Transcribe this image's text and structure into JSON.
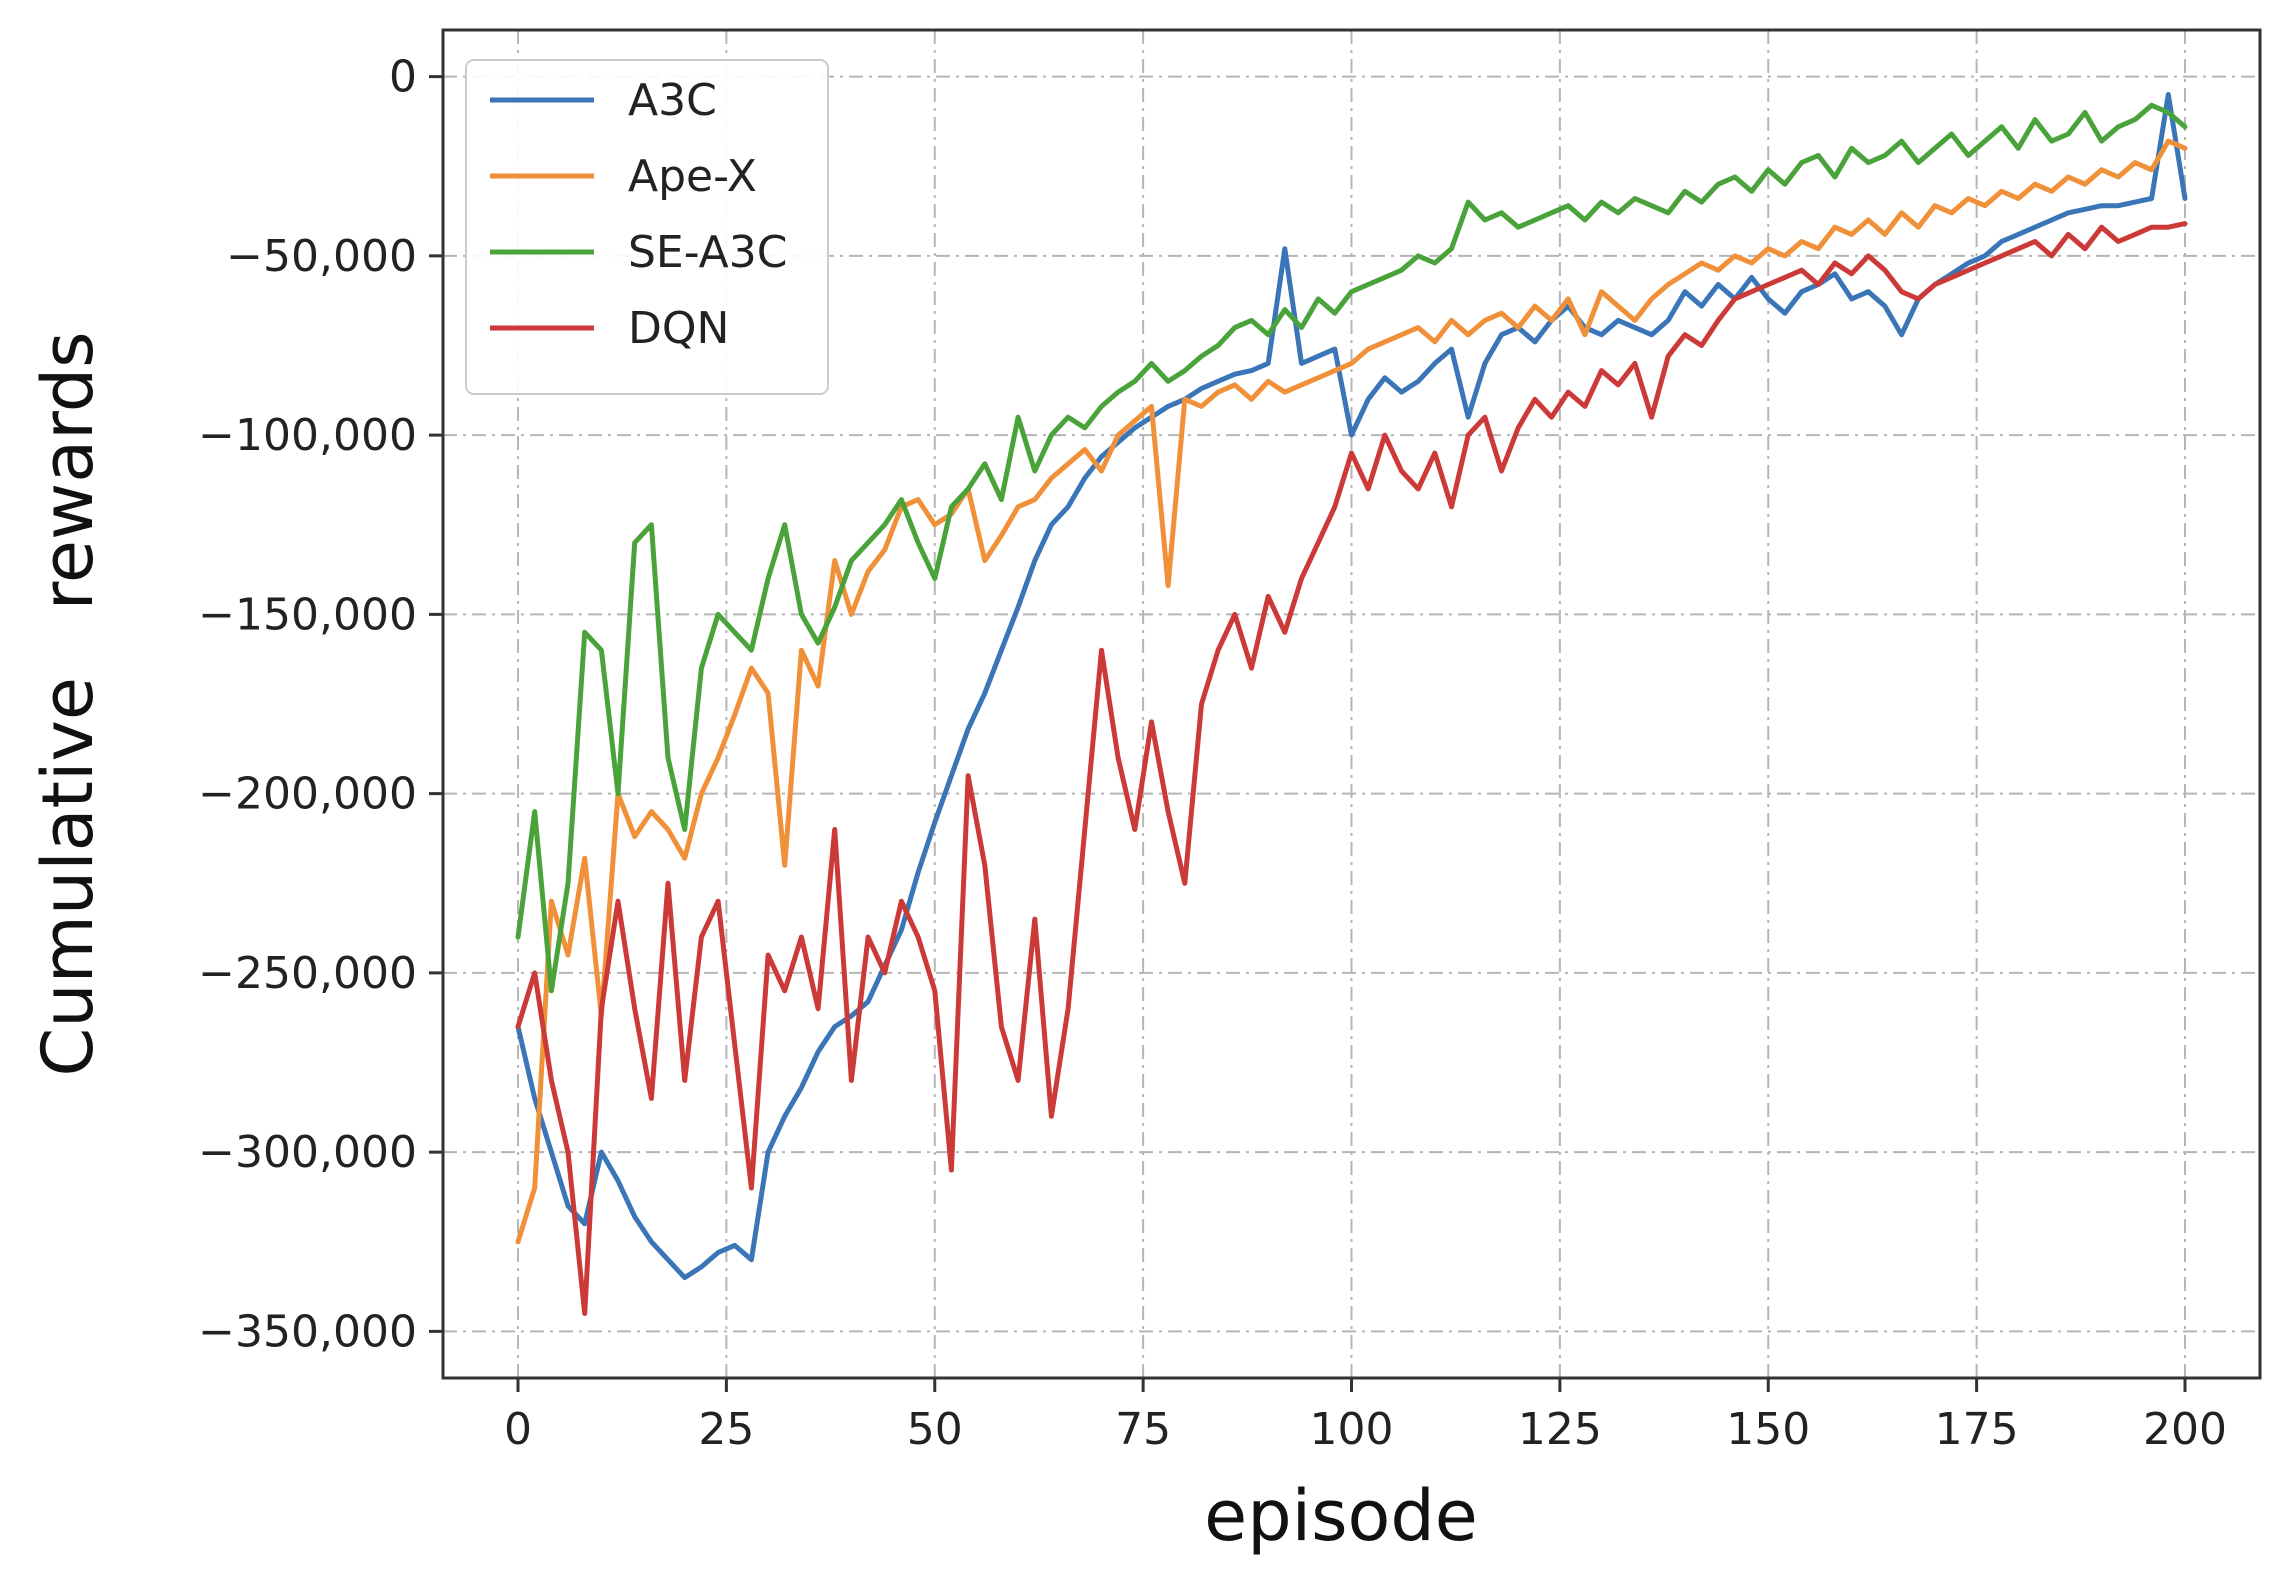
{
  "chart_data": {
    "type": "line",
    "title": "",
    "xlabel": "episode",
    "ylabel": "Cumulative   rewards",
    "xlim": [
      -9,
      209
    ],
    "ylim": [
      -363000,
      13000
    ],
    "xticks": [
      0,
      25,
      50,
      75,
      100,
      125,
      150,
      175,
      200
    ],
    "xtick_labels": [
      "0",
      "25",
      "50",
      "75",
      "100",
      "125",
      "150",
      "175",
      "200"
    ],
    "yticks": [
      0,
      -50000,
      -100000,
      -150000,
      -200000,
      -250000,
      -300000,
      -350000
    ],
    "ytick_labels": [
      "0",
      "−50,000",
      "−100,000",
      "−150,000",
      "−200,000",
      "−250,000",
      "−300,000",
      "−350,000"
    ],
    "grid": true,
    "legend_position": "top-left",
    "series": [
      {
        "name": "A3C",
        "color": "#3a75b8",
        "x": [
          0,
          2,
          4,
          6,
          8,
          10,
          12,
          14,
          16,
          18,
          20,
          22,
          24,
          26,
          28,
          30,
          32,
          34,
          36,
          38,
          40,
          42,
          44,
          46,
          48,
          50,
          52,
          54,
          56,
          58,
          60,
          62,
          64,
          66,
          68,
          70,
          72,
          74,
          76,
          78,
          80,
          82,
          84,
          86,
          88,
          90,
          92,
          94,
          96,
          98,
          100,
          102,
          104,
          106,
          108,
          110,
          112,
          114,
          116,
          118,
          120,
          122,
          124,
          126,
          128,
          130,
          132,
          134,
          136,
          138,
          140,
          142,
          144,
          146,
          148,
          150,
          152,
          154,
          156,
          158,
          160,
          162,
          164,
          166,
          168,
          170,
          172,
          174,
          176,
          178,
          180,
          182,
          184,
          186,
          188,
          190,
          192,
          194,
          196,
          198,
          200
        ],
        "y": [
          -265000,
          -285000,
          -300000,
          -315000,
          -320000,
          -300000,
          -308000,
          -318000,
          -325000,
          -330000,
          -335000,
          -332000,
          -328000,
          -326000,
          -330000,
          -300000,
          -290000,
          -282000,
          -272000,
          -265000,
          -262000,
          -258000,
          -248000,
          -238000,
          -222000,
          -208000,
          -195000,
          -182000,
          -172000,
          -160000,
          -148000,
          -135000,
          -125000,
          -120000,
          -112000,
          -106000,
          -102000,
          -98000,
          -95000,
          -92000,
          -90000,
          -87000,
          -85000,
          -83000,
          -82000,
          -80000,
          -48000,
          -80000,
          -78000,
          -76000,
          -100000,
          -90000,
          -84000,
          -88000,
          -85000,
          -80000,
          -76000,
          -95000,
          -80000,
          -72000,
          -70000,
          -74000,
          -68000,
          -64000,
          -70000,
          -72000,
          -68000,
          -70000,
          -72000,
          -68000,
          -60000,
          -64000,
          -58000,
          -62000,
          -56000,
          -62000,
          -66000,
          -60000,
          -58000,
          -55000,
          -62000,
          -60000,
          -64000,
          -72000,
          -62000,
          -58000,
          -55000,
          -52000,
          -50000,
          -46000,
          -44000,
          -42000,
          -40000,
          -38000,
          -37000,
          -36000,
          -36000,
          -35000,
          -34000,
          -5000,
          -34000
        ]
      },
      {
        "name": "Ape-X",
        "color": "#f0913a",
        "x": [
          0,
          2,
          4,
          6,
          8,
          10,
          12,
          14,
          16,
          18,
          20,
          22,
          24,
          26,
          28,
          30,
          32,
          34,
          36,
          38,
          40,
          42,
          44,
          46,
          48,
          50,
          52,
          54,
          56,
          58,
          60,
          62,
          64,
          66,
          68,
          70,
          72,
          74,
          76,
          78,
          80,
          82,
          84,
          86,
          88,
          90,
          92,
          94,
          96,
          98,
          100,
          102,
          104,
          106,
          108,
          110,
          112,
          114,
          116,
          118,
          120,
          122,
          124,
          126,
          128,
          130,
          132,
          134,
          136,
          138,
          140,
          142,
          144,
          146,
          148,
          150,
          152,
          154,
          156,
          158,
          160,
          162,
          164,
          166,
          168,
          170,
          172,
          174,
          176,
          178,
          180,
          182,
          184,
          186,
          188,
          190,
          192,
          194,
          196,
          198,
          200
        ],
        "y": [
          -325000,
          -310000,
          -230000,
          -245000,
          -218000,
          -262000,
          -200000,
          -212000,
          -205000,
          -210000,
          -218000,
          -200000,
          -190000,
          -178000,
          -165000,
          -172000,
          -220000,
          -160000,
          -170000,
          -135000,
          -150000,
          -138000,
          -132000,
          -120000,
          -118000,
          -125000,
          -122000,
          -115000,
          -135000,
          -128000,
          -120000,
          -118000,
          -112000,
          -108000,
          -104000,
          -110000,
          -100000,
          -96000,
          -92000,
          -142000,
          -90000,
          -92000,
          -88000,
          -86000,
          -90000,
          -85000,
          -88000,
          -86000,
          -84000,
          -82000,
          -80000,
          -76000,
          -74000,
          -72000,
          -70000,
          -74000,
          -68000,
          -72000,
          -68000,
          -66000,
          -70000,
          -64000,
          -68000,
          -62000,
          -72000,
          -60000,
          -64000,
          -68000,
          -62000,
          -58000,
          -55000,
          -52000,
          -54000,
          -50000,
          -52000,
          -48000,
          -50000,
          -46000,
          -48000,
          -42000,
          -44000,
          -40000,
          -44000,
          -38000,
          -42000,
          -36000,
          -38000,
          -34000,
          -36000,
          -32000,
          -34000,
          -30000,
          -32000,
          -28000,
          -30000,
          -26000,
          -28000,
          -24000,
          -26000,
          -18000,
          -20000
        ]
      },
      {
        "name": "SE-A3C",
        "color": "#4aa33a",
        "x": [
          0,
          2,
          4,
          6,
          8,
          10,
          12,
          14,
          16,
          18,
          20,
          22,
          24,
          26,
          28,
          30,
          32,
          34,
          36,
          38,
          40,
          42,
          44,
          46,
          48,
          50,
          52,
          54,
          56,
          58,
          60,
          62,
          64,
          66,
          68,
          70,
          72,
          74,
          76,
          78,
          80,
          82,
          84,
          86,
          88,
          90,
          92,
          94,
          96,
          98,
          100,
          102,
          104,
          106,
          108,
          110,
          112,
          114,
          116,
          118,
          120,
          122,
          124,
          126,
          128,
          130,
          132,
          134,
          136,
          138,
          140,
          142,
          144,
          146,
          148,
          150,
          152,
          154,
          156,
          158,
          160,
          162,
          164,
          166,
          168,
          170,
          172,
          174,
          176,
          178,
          180,
          182,
          184,
          186,
          188,
          190,
          192,
          194,
          196,
          198,
          200
        ],
        "y": [
          -240000,
          -205000,
          -255000,
          -225000,
          -155000,
          -160000,
          -200000,
          -130000,
          -125000,
          -190000,
          -210000,
          -165000,
          -150000,
          -155000,
          -160000,
          -140000,
          -125000,
          -150000,
          -158000,
          -148000,
          -135000,
          -130000,
          -125000,
          -118000,
          -130000,
          -140000,
          -120000,
          -115000,
          -108000,
          -118000,
          -95000,
          -110000,
          -100000,
          -95000,
          -98000,
          -92000,
          -88000,
          -85000,
          -80000,
          -85000,
          -82000,
          -78000,
          -75000,
          -70000,
          -68000,
          -72000,
          -65000,
          -70000,
          -62000,
          -66000,
          -60000,
          -58000,
          -56000,
          -54000,
          -50000,
          -52000,
          -48000,
          -35000,
          -40000,
          -38000,
          -42000,
          -40000,
          -38000,
          -36000,
          -40000,
          -35000,
          -38000,
          -34000,
          -36000,
          -38000,
          -32000,
          -35000,
          -30000,
          -28000,
          -32000,
          -26000,
          -30000,
          -24000,
          -22000,
          -28000,
          -20000,
          -24000,
          -22000,
          -18000,
          -24000,
          -20000,
          -16000,
          -22000,
          -18000,
          -14000,
          -20000,
          -12000,
          -18000,
          -16000,
          -10000,
          -18000,
          -14000,
          -12000,
          -8000,
          -10000,
          -14000
        ]
      },
      {
        "name": "DQN",
        "color": "#cc3a38",
        "x": [
          0,
          2,
          4,
          6,
          8,
          10,
          12,
          14,
          16,
          18,
          20,
          22,
          24,
          26,
          28,
          30,
          32,
          34,
          36,
          38,
          40,
          42,
          44,
          46,
          48,
          50,
          52,
          54,
          56,
          58,
          60,
          62,
          64,
          66,
          68,
          70,
          72,
          74,
          76,
          78,
          80,
          82,
          84,
          86,
          88,
          90,
          92,
          94,
          96,
          98,
          100,
          102,
          104,
          106,
          108,
          110,
          112,
          114,
          116,
          118,
          120,
          122,
          124,
          126,
          128,
          130,
          132,
          134,
          136,
          138,
          140,
          142,
          144,
          146,
          148,
          150,
          152,
          154,
          156,
          158,
          160,
          162,
          164,
          166,
          168,
          170,
          172,
          174,
          176,
          178,
          180,
          182,
          184,
          186,
          188,
          190,
          192,
          194,
          196,
          198,
          200
        ],
        "y": [
          -265000,
          -250000,
          -280000,
          -300000,
          -345000,
          -260000,
          -230000,
          -260000,
          -285000,
          -225000,
          -280000,
          -240000,
          -230000,
          -270000,
          -310000,
          -245000,
          -255000,
          -240000,
          -260000,
          -210000,
          -280000,
          -240000,
          -250000,
          -230000,
          -240000,
          -255000,
          -305000,
          -195000,
          -220000,
          -265000,
          -280000,
          -235000,
          -290000,
          -260000,
          -210000,
          -160000,
          -190000,
          -210000,
          -180000,
          -205000,
          -225000,
          -175000,
          -160000,
          -150000,
          -165000,
          -145000,
          -155000,
          -140000,
          -130000,
          -120000,
          -105000,
          -115000,
          -100000,
          -110000,
          -115000,
          -105000,
          -120000,
          -100000,
          -95000,
          -110000,
          -98000,
          -90000,
          -95000,
          -88000,
          -92000,
          -82000,
          -86000,
          -80000,
          -95000,
          -78000,
          -72000,
          -75000,
          -68000,
          -62000,
          -60000,
          -58000,
          -56000,
          -54000,
          -58000,
          -52000,
          -55000,
          -50000,
          -54000,
          -60000,
          -62000,
          -58000,
          -56000,
          -54000,
          -52000,
          -50000,
          -48000,
          -46000,
          -50000,
          -44000,
          -48000,
          -42000,
          -46000,
          -44000,
          -42000,
          -42000,
          -41000
        ]
      }
    ]
  }
}
